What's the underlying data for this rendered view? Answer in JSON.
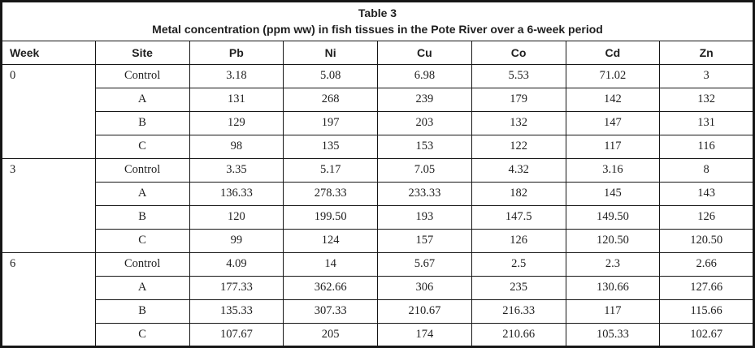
{
  "table": {
    "title": "Table 3",
    "subtitle": "Metal concentration (ppm ww) in fish tissues in the Pote River over a 6-week period",
    "columns": [
      "Week",
      "Site",
      "Pb",
      "Ni",
      "Cu",
      "Co",
      "Cd",
      "Zn"
    ],
    "groups": [
      {
        "week": "0",
        "rows": [
          {
            "site": "Control",
            "values": [
              "3.18",
              "5.08",
              "6.98",
              "5.53",
              "71.02",
              "3"
            ]
          },
          {
            "site": "A",
            "values": [
              "131",
              "268",
              "239",
              "179",
              "142",
              "132"
            ]
          },
          {
            "site": "B",
            "values": [
              "129",
              "197",
              "203",
              "132",
              "147",
              "131"
            ]
          },
          {
            "site": "C",
            "values": [
              "98",
              "135",
              "153",
              "122",
              "117",
              "116"
            ]
          }
        ]
      },
      {
        "week": "3",
        "rows": [
          {
            "site": "Control",
            "values": [
              "3.35",
              "5.17",
              "7.05",
              "4.32",
              "3.16",
              "8"
            ]
          },
          {
            "site": "A",
            "values": [
              "136.33",
              "278.33",
              "233.33",
              "182",
              "145",
              "143"
            ]
          },
          {
            "site": "B",
            "values": [
              "120",
              "199.50",
              "193",
              "147.5",
              "149.50",
              "126"
            ]
          },
          {
            "site": "C",
            "values": [
              "99",
              "124",
              "157",
              "126",
              "120.50",
              "120.50"
            ]
          }
        ]
      },
      {
        "week": "6",
        "rows": [
          {
            "site": "Control",
            "values": [
              "4.09",
              "14",
              "5.67",
              "2.5",
              "2.3",
              "2.66"
            ]
          },
          {
            "site": "A",
            "values": [
              "177.33",
              "362.66",
              "306",
              "235",
              "130.66",
              "127.66"
            ]
          },
          {
            "site": "B",
            "values": [
              "135.33",
              "307.33",
              "210.67",
              "216.33",
              "117",
              "115.66"
            ]
          },
          {
            "site": "C",
            "values": [
              "107.67",
              "205",
              "174",
              "210.66",
              "105.33",
              "102.67"
            ]
          }
        ]
      }
    ]
  }
}
